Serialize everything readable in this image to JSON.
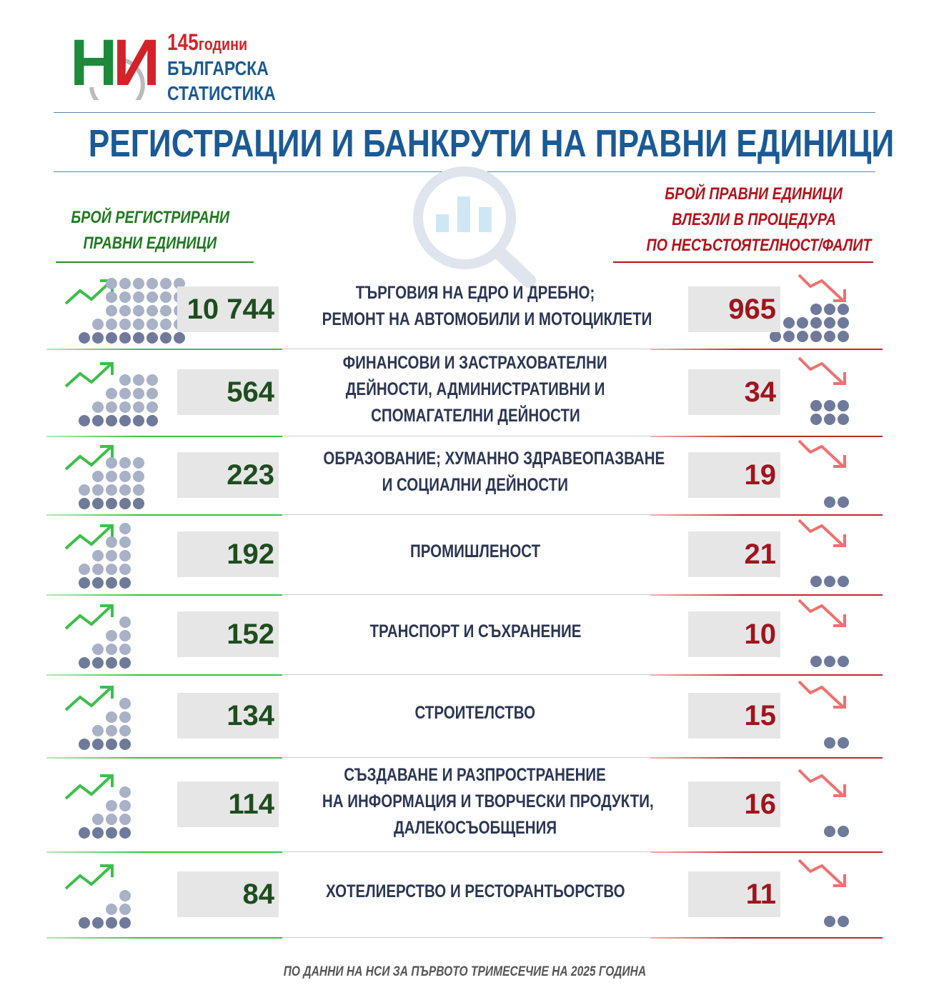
{
  "logo": {
    "letters": [
      "Н",
      "И"
    ],
    "years": "145",
    "years_word": "години",
    "line1": "БЪЛГАРСКА",
    "line2": "СТАТИСТИКА"
  },
  "title": "РЕГИСТРАЦИИ И БАНКРУТИ НА ПРАВНИ ЕДИНИЦИ",
  "left_header": [
    "БРОЙ РЕГИСТРИРАНИ",
    "ПРАВНИ ЕДИНИЦИ"
  ],
  "right_header": [
    "БРОЙ ПРАВНИ ЕДИНИЦИ",
    "ВЛЕЗЛИ В ПРОЦЕДУРА",
    "ПО НЕСЪСТОЯТЕЛНОСТ/ФАЛИТ"
  ],
  "rows": [
    {
      "label": [
        "ТЪРГОВИЯ НА ЕДРО И ДРЕБНО;",
        "РЕМОНТ НА АВТОМОБИЛИ И МОТОЦИКЛЕТИ"
      ],
      "registered": "10 744",
      "bankrupt": "965"
    },
    {
      "label": [
        "ФИНАНСОВИ И ЗАСТРАХОВАТЕЛНИ",
        "ДЕЙНОСТИ, АДМИНИСТРАТИВНИ И",
        "СПОМАГАТЕЛНИ ДЕЙНОСТИ"
      ],
      "registered": "564",
      "bankrupt": "34"
    },
    {
      "label": [
        "ОБРАЗОВАНИЕ; ХУМАННО ЗДРАВЕОПАЗВАНЕ",
        "И СОЦИАЛНИ ДЕЙНОСТИ"
      ],
      "registered": "223",
      "bankrupt": "19"
    },
    {
      "label": [
        "ПРОМИШЛЕНОСТ"
      ],
      "registered": "192",
      "bankrupt": "21"
    },
    {
      "label": [
        "ТРАНСПОРТ И СЪХРАНЕНИЕ"
      ],
      "registered": "152",
      "bankrupt": "10"
    },
    {
      "label": [
        "СТРОИТЕЛСТВО"
      ],
      "registered": "134",
      "bankrupt": "15"
    },
    {
      "label": [
        "СЪЗДАВАНЕ И РАЗПРОСТРАНЕНИЕ",
        "НА ИНФОРМАЦИЯ И ТВОРЧЕСКИ ПРОДУКТИ,",
        "ДАЛЕКОСЪОБЩЕНИЯ"
      ],
      "registered": "114",
      "bankrupt": "16"
    },
    {
      "label": [
        "ХОТЕЛИЕРСТВО И РЕСТОРАНТЬОРСТВО"
      ],
      "registered": "84",
      "bankrupt": "11"
    }
  ],
  "footer": "ПО ДАННИ НА НСИ ЗА ПЪРВОТО ТРИМЕСЕЧИЕ НА 2025 ГОДИНА"
}
